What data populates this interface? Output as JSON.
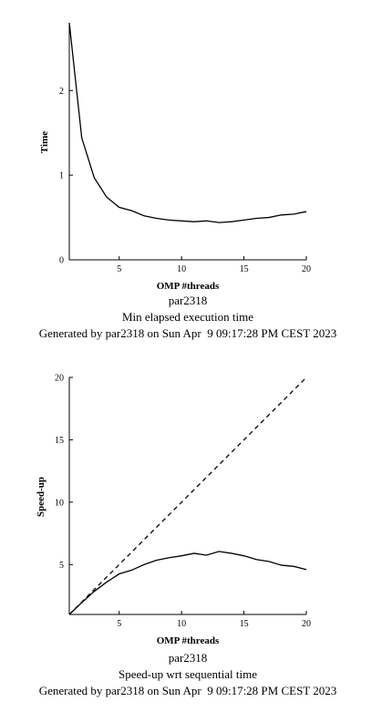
{
  "chart_data": [
    {
      "type": "line",
      "title": "Min elapsed execution time",
      "name_label": "par2318",
      "generated": "Generated by par2318 on Sun Apr  9 09:17:28 PM CEST 2023",
      "xlabel": "OMP #threads",
      "ylabel": "Time",
      "xlim": [
        1,
        20
      ],
      "ylim": [
        0,
        2.8
      ],
      "xticks": [
        5,
        10,
        15,
        20
      ],
      "yticks": [
        0,
        1,
        2
      ],
      "grid": false,
      "series": [
        {
          "x": [
            1,
            2,
            3,
            4,
            5,
            6,
            7,
            8,
            9,
            10,
            11,
            12,
            13,
            14,
            15,
            16,
            17,
            18,
            19,
            20
          ],
          "values": [
            2.8,
            1.44,
            0.97,
            0.74,
            0.62,
            0.58,
            0.52,
            0.49,
            0.47,
            0.46,
            0.45,
            0.46,
            0.44,
            0.45,
            0.47,
            0.49,
            0.5,
            0.53,
            0.54,
            0.57
          ],
          "style": "solid"
        }
      ]
    },
    {
      "type": "line",
      "title": "Speed-up wrt sequential time",
      "name_label": "par2318",
      "generated": "Generated by par2318 on Sun Apr  9 09:17:28 PM CEST 2023",
      "xlabel": "OMP #threads",
      "ylabel": "Speed-up",
      "xlim": [
        1,
        20
      ],
      "ylim": [
        1,
        20
      ],
      "xticks": [
        5,
        10,
        15,
        20
      ],
      "yticks": [
        5,
        10,
        15,
        20
      ],
      "grid": false,
      "series": [
        {
          "x": [
            1,
            2,
            3,
            4,
            5,
            6,
            7,
            8,
            9,
            10,
            11,
            12,
            13,
            14,
            15,
            16,
            17,
            18,
            19,
            20
          ],
          "values": [
            1.0,
            1.95,
            2.85,
            3.6,
            4.25,
            4.55,
            5.0,
            5.35,
            5.55,
            5.7,
            5.9,
            5.75,
            6.05,
            5.9,
            5.7,
            5.4,
            5.25,
            4.95,
            4.85,
            4.6
          ],
          "style": "solid"
        },
        {
          "x": [
            1,
            20
          ],
          "values": [
            1,
            20
          ],
          "style": "dashed"
        }
      ]
    }
  ]
}
